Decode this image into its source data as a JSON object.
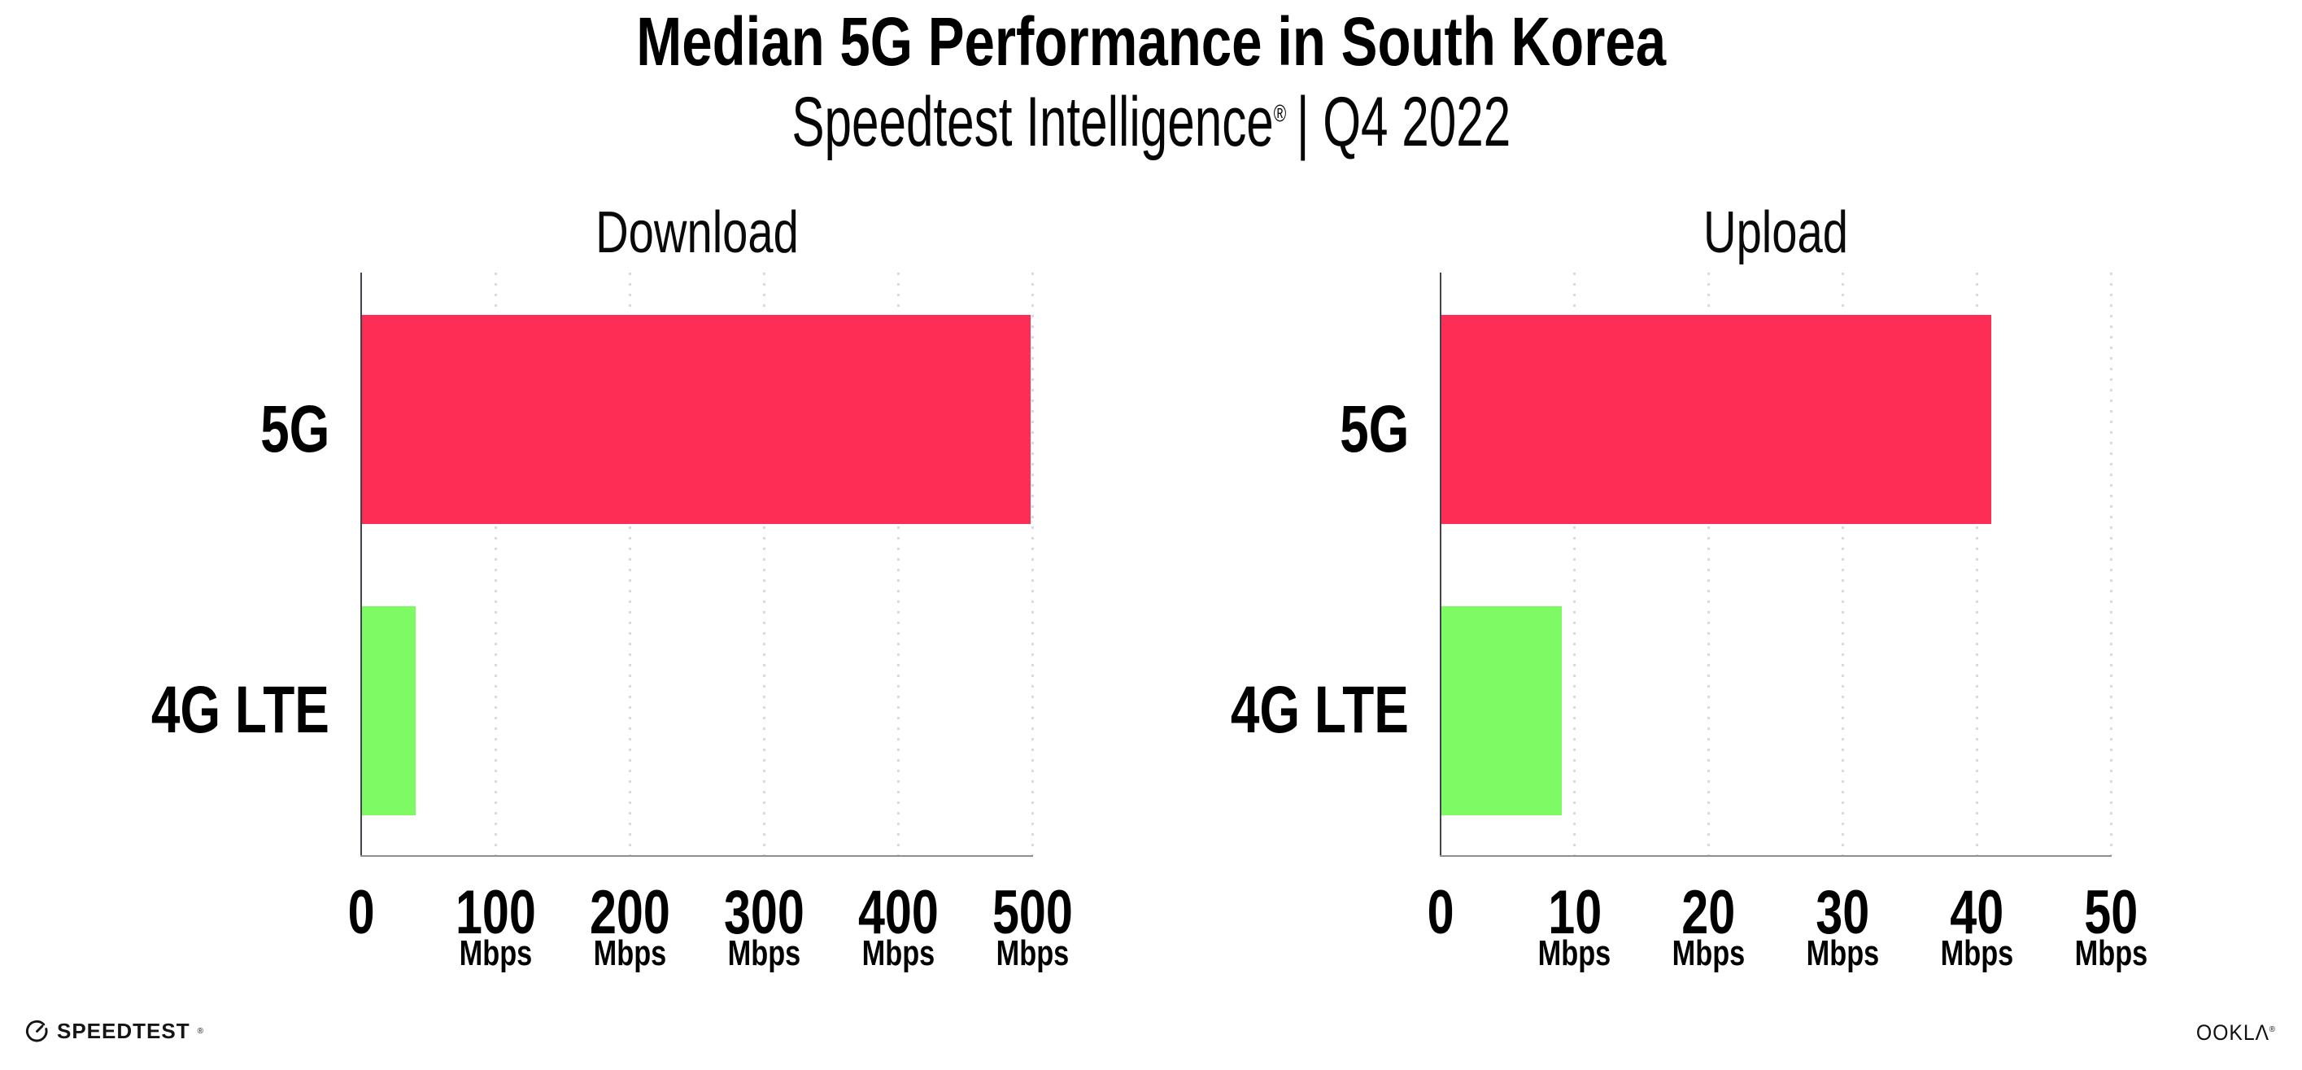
{
  "title": "Median 5G Performance in South Korea",
  "subtitle": {
    "brand": "Speedtest Intelligence",
    "reg_mark": "®",
    "separator_and_period": "| Q4 2022"
  },
  "colors": {
    "bar_5g": "#FD2D55",
    "bar_4g_lte": "#7DFA64",
    "gridline": "#d9d9e2",
    "axis_left_spine": "#3f434b",
    "axis_bottom_spine": "#8f8f8f",
    "text": "#000000",
    "background": "#ffffff"
  },
  "footer": {
    "speedtest_label": "SPEEDTEST",
    "speedtest_mark": "®",
    "speedtest_icon": "gauge-icon",
    "ookla_label": "OOKLΛ",
    "ookla_mark": "®"
  },
  "chart_data": [
    {
      "type": "bar",
      "orientation": "horizontal",
      "title": "Download",
      "categories": [
        "5G",
        "4G LTE"
      ],
      "values": [
        498,
        40
      ],
      "unit": "Mbps",
      "xlim": [
        0,
        500
      ],
      "xticks": [
        0,
        100,
        200,
        300,
        400,
        500
      ],
      "xtick_unit_label": "Mbps",
      "unit_on_zero_tick": false,
      "bar_colors": [
        "#FD2D55",
        "#7DFA64"
      ],
      "grid": "vertical-dotted",
      "legend": "none"
    },
    {
      "type": "bar",
      "orientation": "horizontal",
      "title": "Upload",
      "categories": [
        "5G",
        "4G LTE"
      ],
      "values": [
        41,
        9
      ],
      "unit": "Mbps",
      "xlim": [
        0,
        50
      ],
      "xticks": [
        0,
        10,
        20,
        30,
        40,
        50
      ],
      "xtick_unit_label": "Mbps",
      "unit_on_zero_tick": false,
      "bar_colors": [
        "#FD2D55",
        "#7DFA64"
      ],
      "grid": "vertical-dotted",
      "legend": "none"
    }
  ]
}
